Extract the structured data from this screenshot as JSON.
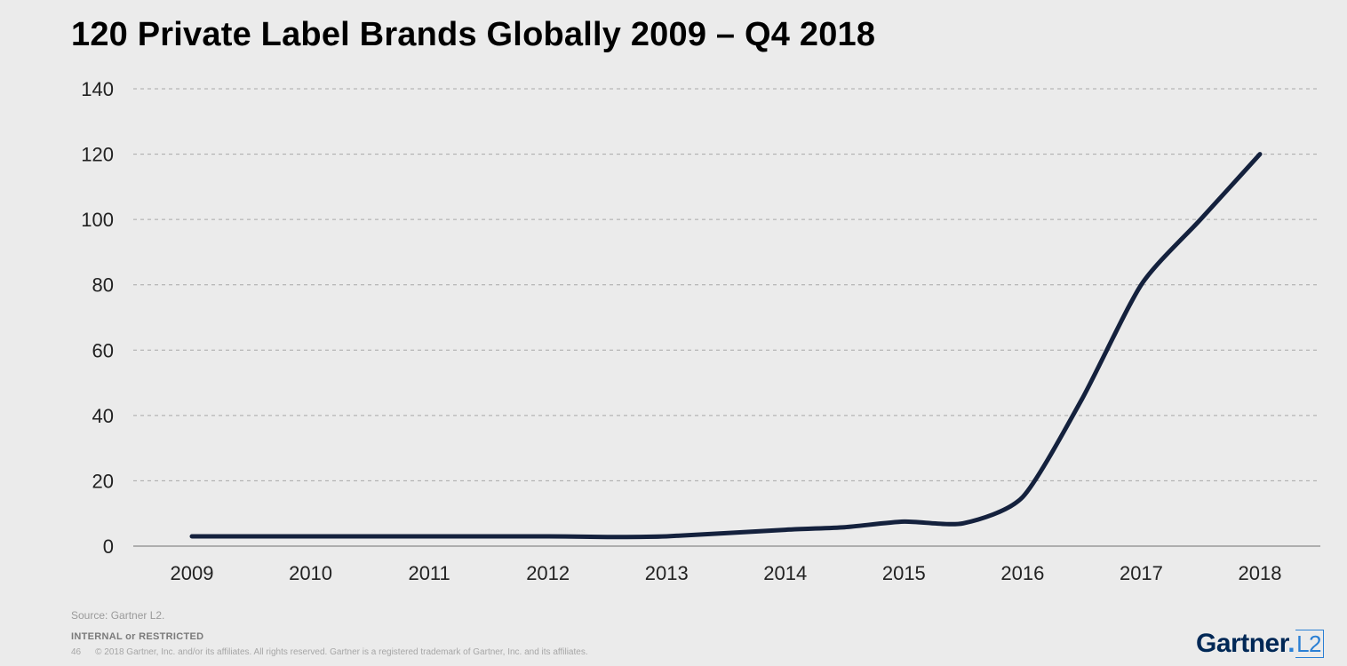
{
  "chart_data": {
    "type": "line",
    "title": "120 Private Label Brands Globally 2009 – Q4 2018",
    "xlabel": "",
    "ylabel": "",
    "categories": [
      "2009",
      "2010",
      "2011",
      "2012",
      "2013",
      "2014",
      "2015",
      "2016",
      "2017",
      "2018"
    ],
    "ylim": [
      0,
      140
    ],
    "yticks": [
      "0",
      "20",
      "40",
      "60",
      "80",
      "100",
      "120",
      "140"
    ],
    "grid": true,
    "series": [
      {
        "name": "Private label brands",
        "x": [
          2009,
          2010,
          2011,
          2012,
          2012.5,
          2013,
          2014,
          2014.5,
          2015,
          2015.5,
          2016,
          2016.5,
          2017,
          2017.5,
          2018
        ],
        "values": [
          3,
          3,
          3,
          3,
          2.8,
          3,
          5,
          5.8,
          7.5,
          7,
          15,
          45,
          80,
          100,
          120
        ]
      }
    ]
  },
  "colors": {
    "line": "#14213d",
    "grid": "#a8a8a8",
    "axis": "#9a9a9a",
    "background": "#ebebeb"
  },
  "footer": {
    "source": "Source: Gartner L2.",
    "classification": "INTERNAL or RESTRICTED",
    "page_number": "46",
    "copyright": "© 2018 Gartner, Inc. and/or its affiliates. All rights reserved. Gartner is a registered trademark of Gartner, Inc. and its affiliates."
  },
  "logo": {
    "name": "Gartner",
    "dot": ".",
    "suffix": "L2"
  }
}
